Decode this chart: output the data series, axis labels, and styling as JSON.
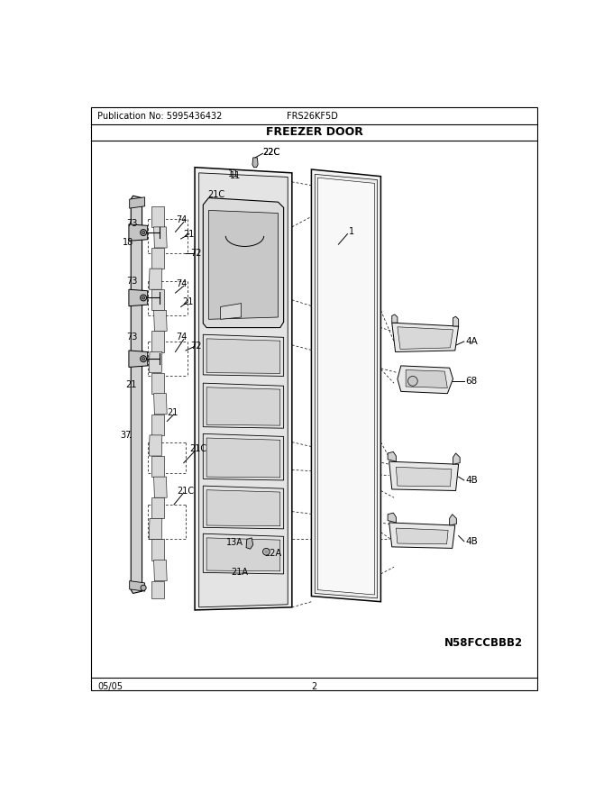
{
  "title": "FREEZER DOOR",
  "pub_no": "Publication No: 5995436432",
  "model": "FRS26KF5D",
  "date": "05/05",
  "page": "2",
  "diagram_id": "N58FCCBBB2",
  "bg_color": "#ffffff",
  "line_color": "#000000"
}
